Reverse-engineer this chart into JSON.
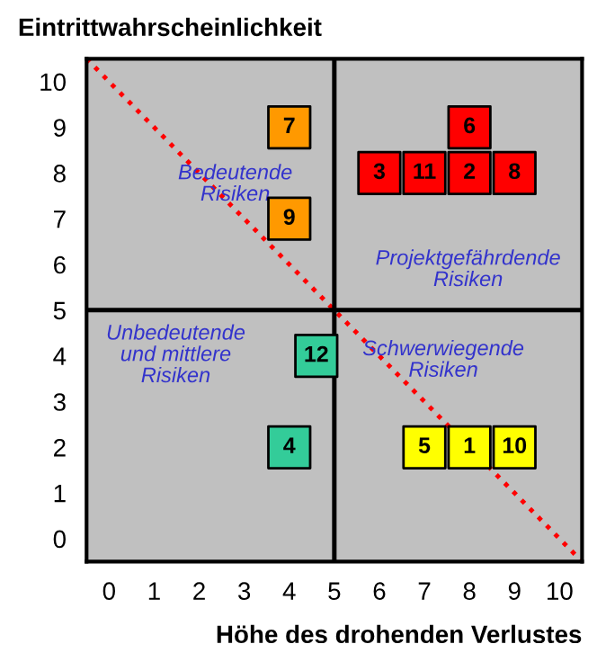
{
  "chart_data": {
    "type": "scatter",
    "ylabel": "Eintrittwahrscheinlichkeit",
    "xlabel": "Höhe des drohenden Verlustes",
    "xlim": [
      -0.5,
      10.5
    ],
    "ylim": [
      -0.5,
      10.5
    ],
    "xticks": [
      0,
      1,
      2,
      3,
      4,
      5,
      6,
      7,
      8,
      9,
      10
    ],
    "yticks": [
      0,
      1,
      2,
      3,
      4,
      5,
      6,
      7,
      8,
      9,
      10
    ],
    "grid": false,
    "legend": false,
    "marker": "square",
    "series": [
      {
        "color": "#ff9900",
        "x": [
          4,
          4
        ],
        "values": [
          9,
          7
        ]
      },
      {
        "color": "#ff0000",
        "x": [
          8,
          6,
          7,
          8,
          9
        ],
        "values": [
          9,
          8,
          8,
          8,
          8
        ]
      },
      {
        "color": "#33cc99",
        "x": [
          4.6,
          4
        ],
        "values": [
          4,
          2
        ]
      },
      {
        "color": "#ffff00",
        "x": [
          7,
          8,
          9
        ],
        "values": [
          2,
          2,
          2
        ]
      },
      {
        "type": "line",
        "color": "#ff0000",
        "line_style": "dotted",
        "marker": "none",
        "x": [
          -0.5,
          10.5
        ],
        "values": [
          10.5,
          -0.5
        ]
      },
      {
        "type": "line",
        "color": "#000000",
        "line_style": "solid",
        "marker": "none",
        "x": [
          5,
          5
        ],
        "values": [
          -0.5,
          10.5
        ]
      },
      {
        "type": "line",
        "color": "#000000",
        "line_style": "solid",
        "marker": "none",
        "x": [
          -0.5,
          10.5
        ],
        "values": [
          5,
          5
        ]
      }
    ],
    "annotations": [
      {
        "text": "7",
        "x": 4,
        "y": 9
      },
      {
        "text": "9",
        "x": 4,
        "y": 7
      },
      {
        "text": "6",
        "x": 8,
        "y": 9
      },
      {
        "text": "3",
        "x": 6,
        "y": 8
      },
      {
        "text": "11",
        "x": 7,
        "y": 8
      },
      {
        "text": "2",
        "x": 8,
        "y": 8
      },
      {
        "text": "8",
        "x": 9,
        "y": 8
      },
      {
        "text": "12",
        "x": 4.6,
        "y": 4
      },
      {
        "text": "4",
        "x": 4,
        "y": 2
      },
      {
        "text": "5",
        "x": 7,
        "y": 2
      },
      {
        "text": "1",
        "x": 8,
        "y": 2
      },
      {
        "text": "10",
        "x": 9,
        "y": 2
      },
      "Bedeutende\nRisiken",
      "Projektgefährdende\nRisiken",
      "Unbedeutende\nund mittlere\nRisiken",
      "Schwerwiegende\nRisiken"
    ]
  }
}
